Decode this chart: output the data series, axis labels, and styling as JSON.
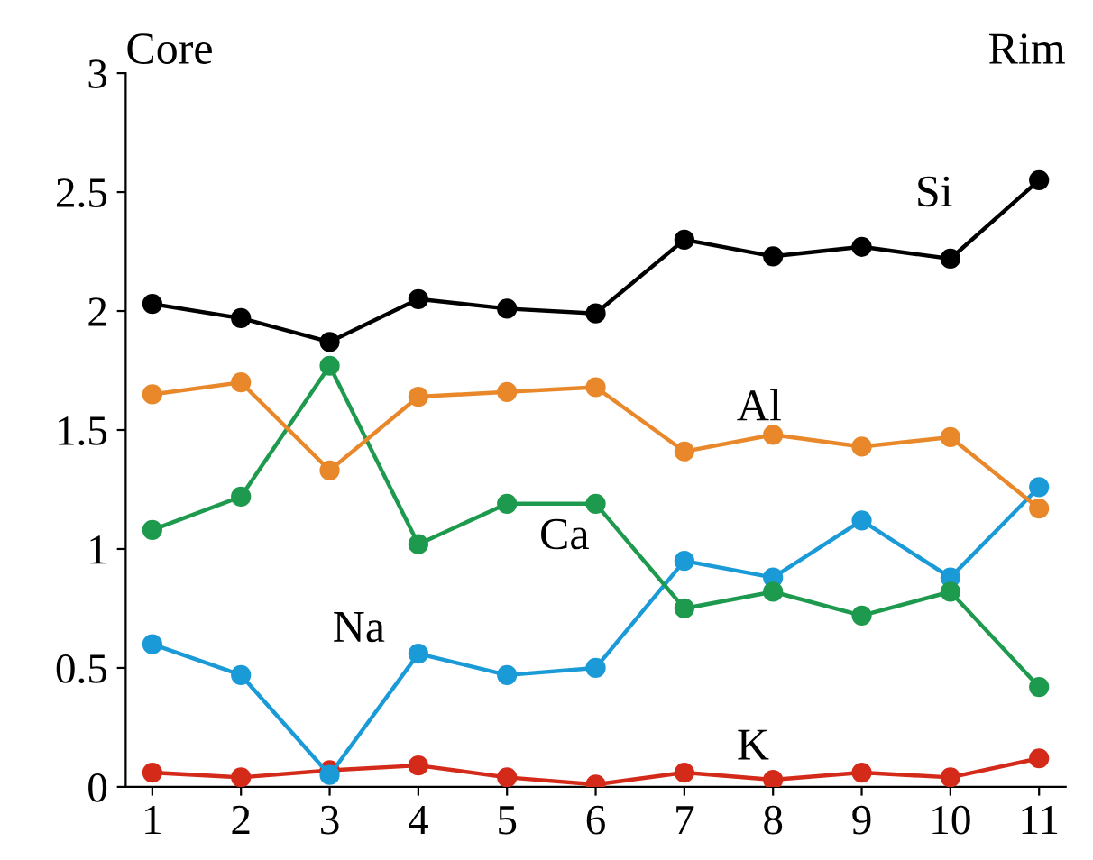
{
  "chart_data": {
    "type": "line",
    "categories": [
      "1",
      "2",
      "3",
      "4",
      "5",
      "6",
      "7",
      "8",
      "9",
      "10",
      "11"
    ],
    "series": [
      {
        "color": "#000000",
        "values": [
          2.03,
          1.97,
          1.87,
          2.05,
          2.01,
          1.99,
          2.3,
          2.23,
          2.27,
          2.22,
          2.55
        ]
      },
      {
        "color": "#e8882a",
        "values": [
          1.65,
          1.7,
          1.33,
          1.64,
          1.66,
          1.68,
          1.41,
          1.48,
          1.43,
          1.47,
          1.17
        ]
      },
      {
        "color": "#1e9a4e",
        "values": [
          1.08,
          1.22,
          1.77,
          1.02,
          1.19,
          1.19,
          0.75,
          0.82,
          0.72,
          0.82,
          0.42
        ]
      },
      {
        "color": "#1a9ad6",
        "values": [
          0.6,
          0.47,
          0.05,
          0.56,
          0.47,
          0.5,
          0.95,
          0.88,
          1.12,
          0.88,
          1.26
        ]
      },
      {
        "color": "#d42a1a",
        "values": [
          0.06,
          0.04,
          0.07,
          0.09,
          0.04,
          0.01,
          0.06,
          0.03,
          0.06,
          0.04,
          0.12
        ]
      }
    ],
    "ylim": [
      0,
      3
    ],
    "yticks": [
      0,
      0.5,
      1,
      1.5,
      2,
      2.5,
      3
    ],
    "grid": false,
    "legend": false,
    "marker": "circle",
    "line_style": "solid",
    "annotations": [
      "Si",
      "Al",
      "Ca",
      "Na",
      "K",
      "Core",
      "Rim"
    ]
  }
}
